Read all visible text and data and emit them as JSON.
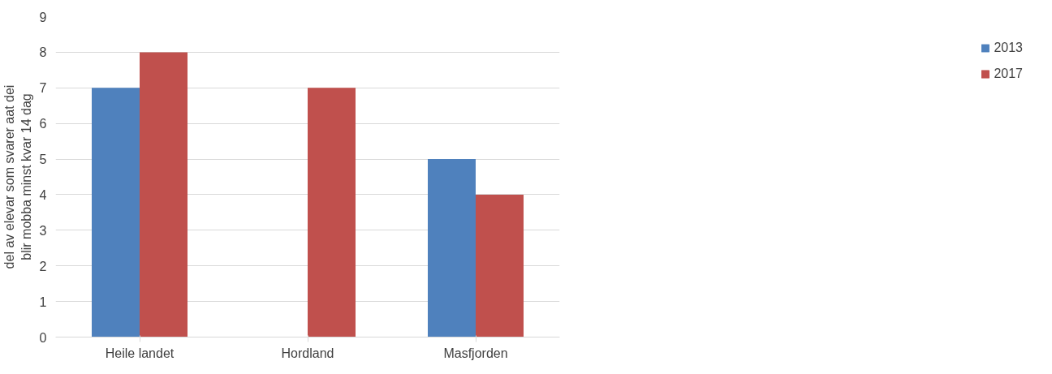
{
  "chart_data": {
    "type": "bar",
    "ylabel": "del av elevar som svarer aat dei blir mobba minst kvar 14 dag",
    "categories": [
      "Heile landet",
      "Hordland",
      "Masfjorden"
    ],
    "series": [
      {
        "name": "2013",
        "color": "#4f81bd",
        "values": [
          7,
          null,
          5
        ]
      },
      {
        "name": "2017",
        "color": "#c0504d",
        "values": [
          8,
          7,
          4
        ]
      }
    ],
    "ylim": [
      0,
      9
    ],
    "yticks": [
      0,
      1,
      2,
      3,
      4,
      5,
      6,
      7,
      8,
      9
    ],
    "grid": "y",
    "legend": "right"
  }
}
